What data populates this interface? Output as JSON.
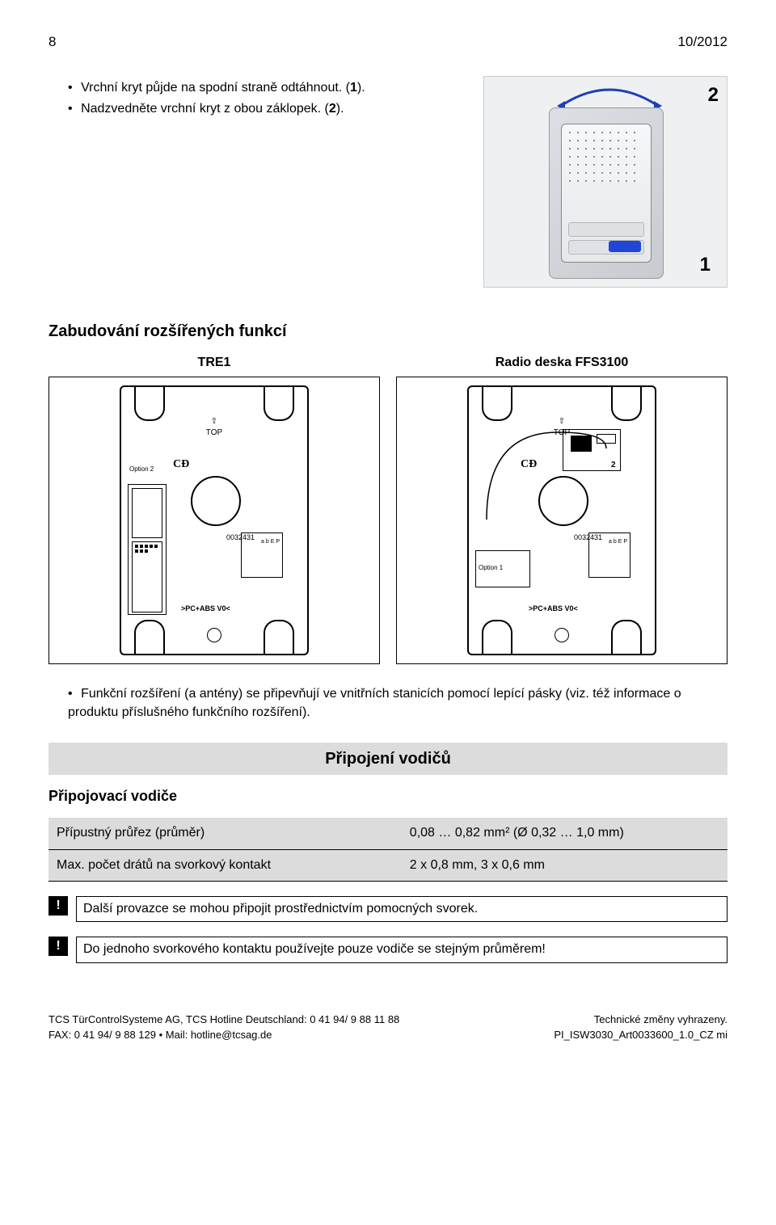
{
  "header": {
    "page_no": "8",
    "issue": "10/2012"
  },
  "intro": {
    "line1_pre": "Vrchní kryt půjde na spodní straně odtáhnout. (",
    "line1_b": "1",
    "line1_post": ").",
    "line2_pre": "Nadzvedněte vrchní kryt z obou záklopek. (",
    "line2_b": "2",
    "line2_post": ")."
  },
  "device": {
    "marker1": "1",
    "marker2": "2"
  },
  "section_embed": {
    "title": "Zabudování rozšířených funkcí",
    "col1": "TRE1",
    "col2": "Radio deska FFS3100",
    "pcb": {
      "top": "TOP",
      "ce": "CƉ",
      "opt2": "Option 2",
      "opt1": "Option 1",
      "part": "0032431",
      "connector_pins": "a b E P",
      "bottom_label": ">PC+ABS V0<",
      "radio_num": "2"
    },
    "bullet": "Funkční rozšíření (a antény) se připevňují ve vnitřních stanicích pomocí lepící pásky (viz. též informace o produktu příslušného funkčního rozšíření)."
  },
  "wiring": {
    "bar": "Připojení vodičů",
    "sub": "Připojovací vodiče",
    "rows": [
      {
        "k": "Přípustný průřez (průměr)",
        "v": "0,08 … 0,82 mm² (Ø 0,32 … 1,0 mm)"
      },
      {
        "k": "Max. počet drátů na svorkový kontakt",
        "v": "2 x 0,8 mm, 3 x 0,6 mm"
      }
    ]
  },
  "notes": {
    "mark": "!",
    "n1": "Další provazce se mohou připojit prostřednictvím pomocných svorek.",
    "n2": "Do jednoho svorkového kontaktu používejte pouze vodiče se stejným průměrem!"
  },
  "footer": {
    "left1": "TCS TürControlSysteme AG, TCS Hotline Deutschland:  0 41 94/ 9 88 11 88",
    "left2": "FAX: 0 41 94/ 9 88 129 • Mail: hotline@tcsag.de",
    "right1": "Technické změny vyhrazeny.",
    "right2": "PI_ISW3030_Art0033600_1.0_CZ      mi"
  },
  "colors": {
    "accent_blue": "#2046d6",
    "grey_bar": "#dcdcdc"
  }
}
